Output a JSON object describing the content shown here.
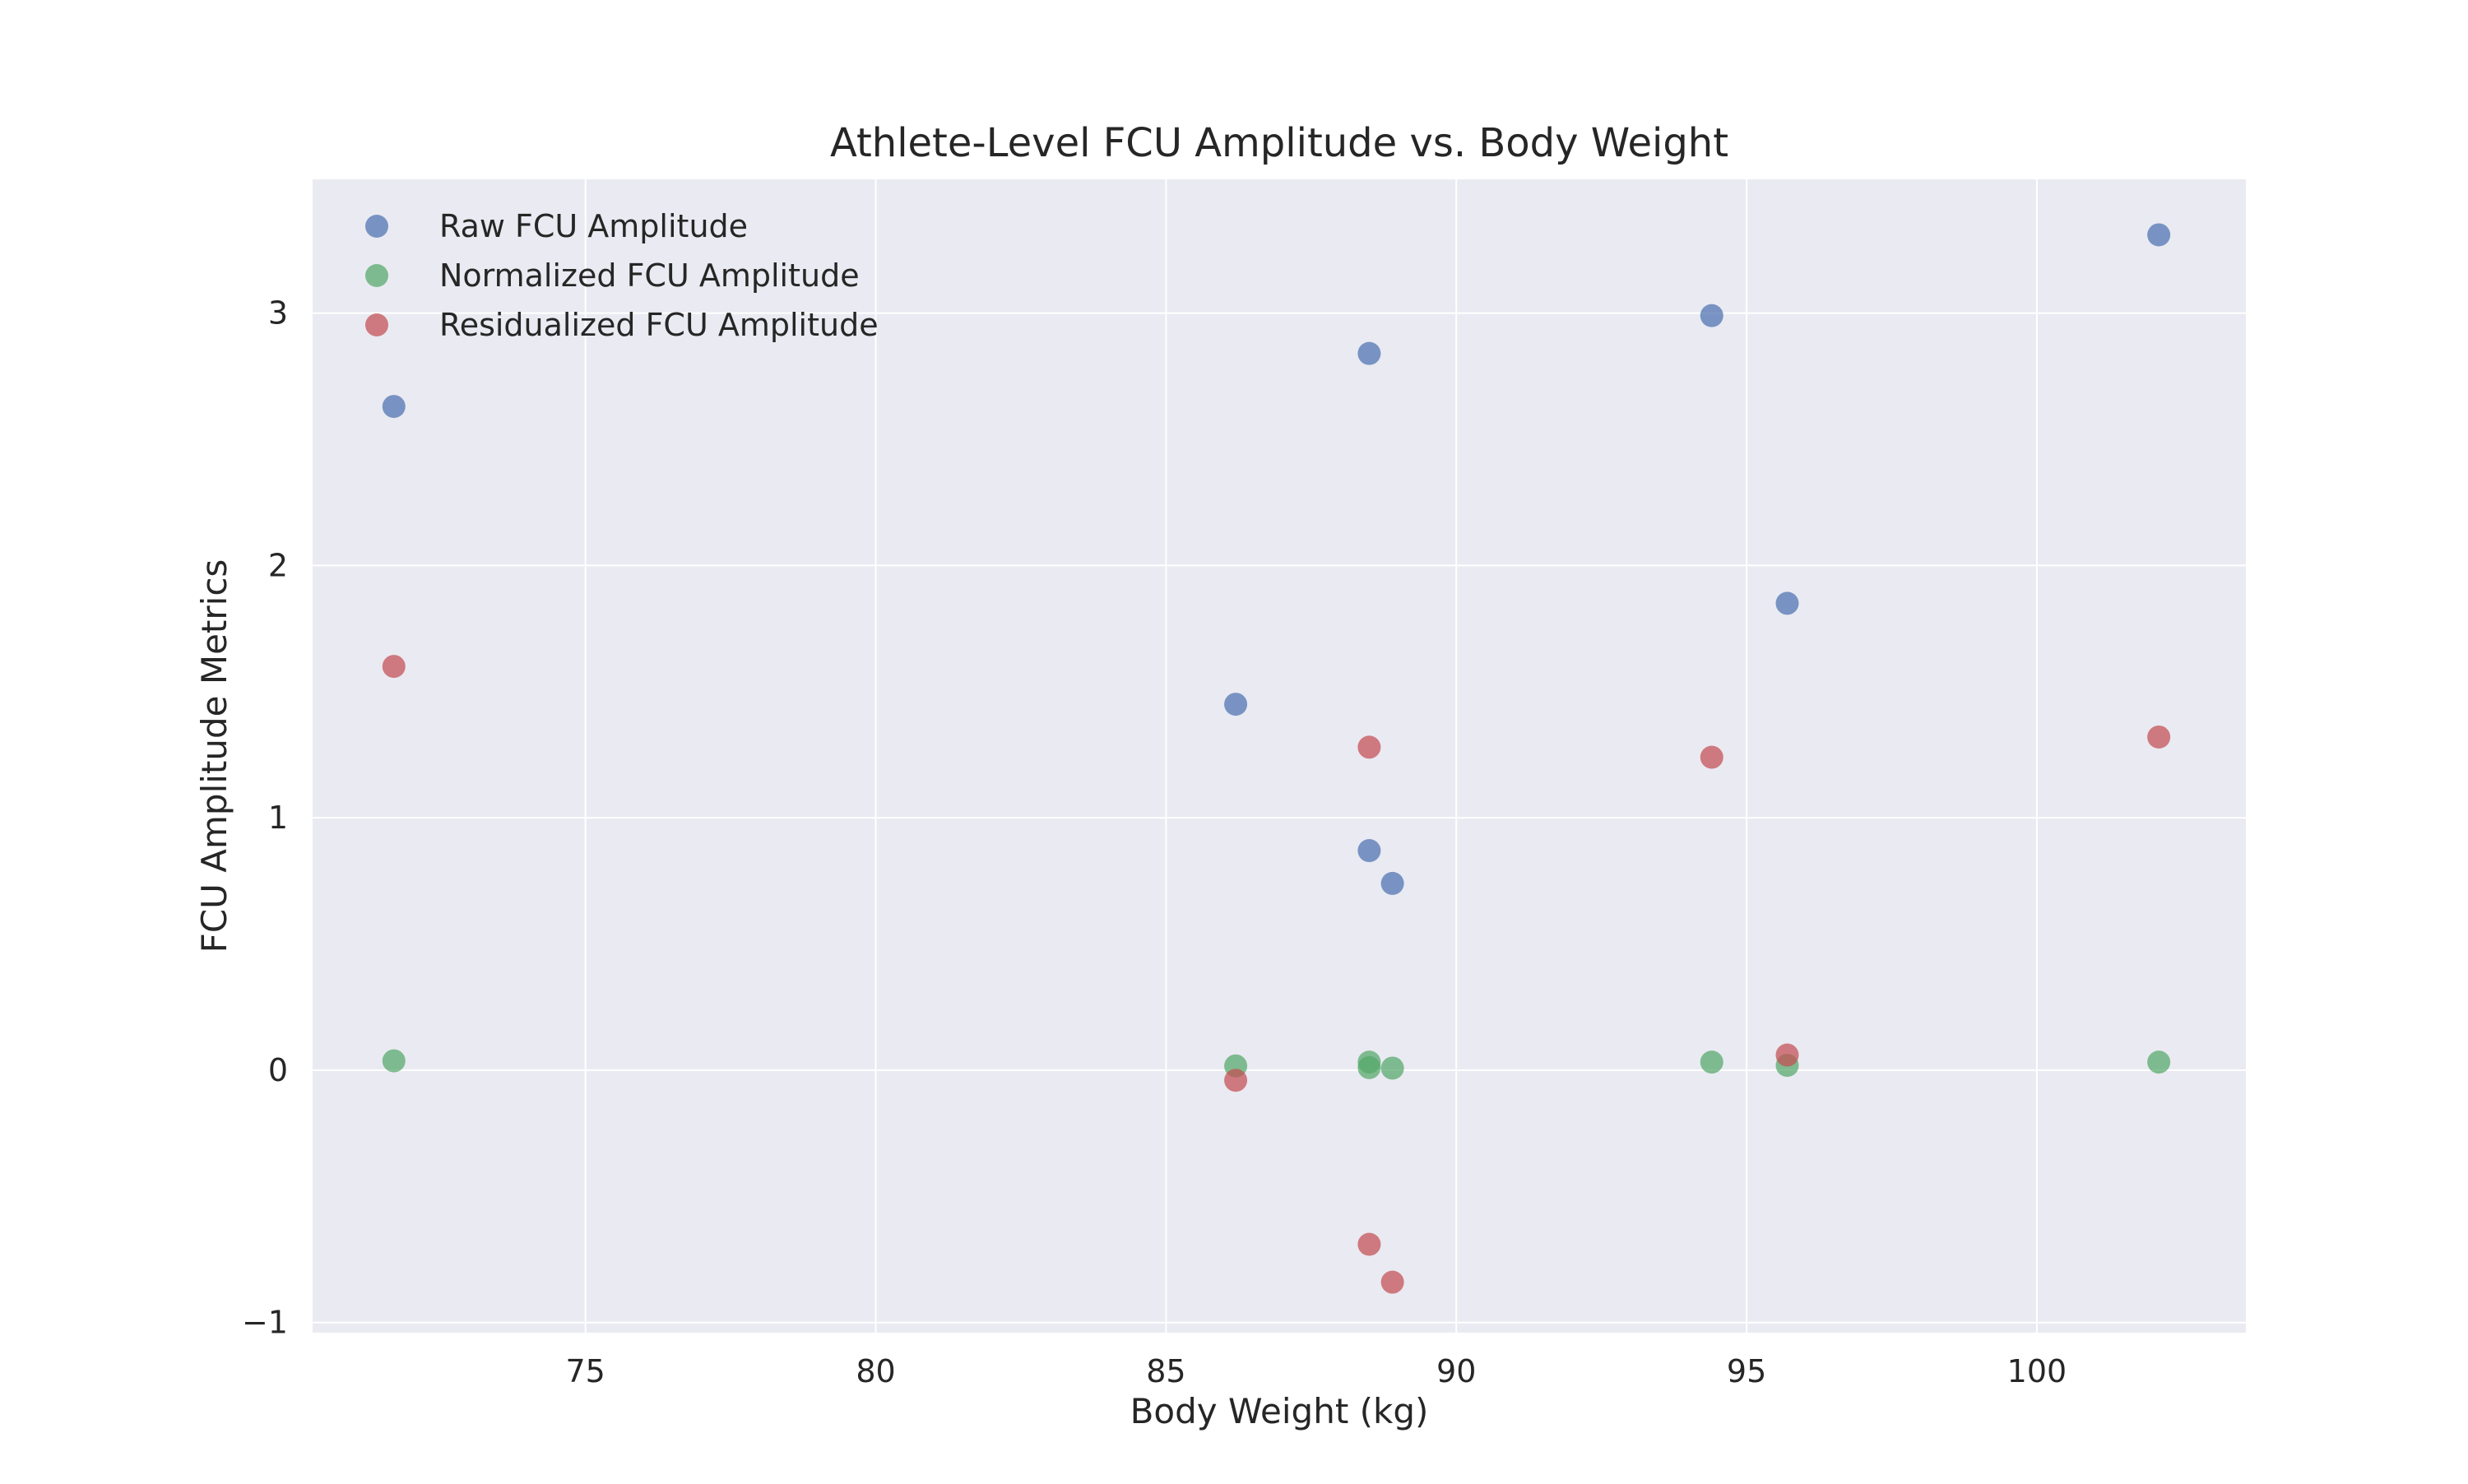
{
  "chart_data": {
    "type": "scatter",
    "title": "Athlete-Level FCU Amplitude vs. Body Weight",
    "xlabel": "Body Weight (kg)",
    "ylabel": "FCU Amplitude Metrics",
    "xlim": [
      70.3,
      103.6
    ],
    "ylim": [
      -1.04,
      3.53
    ],
    "xticks": [
      75,
      80,
      85,
      90,
      95,
      100
    ],
    "xtick_labels": [
      "75",
      "80",
      "85",
      "90",
      "95",
      "100"
    ],
    "yticks": [
      -1,
      0,
      1,
      2,
      3
    ],
    "ytick_labels": [
      "−1",
      "0",
      "1",
      "2",
      "3"
    ],
    "grid": true,
    "legend_position": "top-left",
    "colors": {
      "background": "#eaeaf2",
      "grid": "#ffffff",
      "Raw FCU Amplitude": "#4c72b0",
      "Normalized FCU Amplitude": "#55a868",
      "Residualized FCU Amplitude": "#c44e52"
    },
    "series": [
      {
        "name": "Raw FCU Amplitude",
        "x": [
          71.7,
          86.2,
          88.5,
          88.5,
          88.9,
          94.4,
          95.7,
          102.1
        ],
        "y": [
          2.63,
          1.45,
          2.84,
          0.87,
          0.74,
          2.99,
          1.85,
          3.31
        ]
      },
      {
        "name": "Normalized FCU Amplitude",
        "x": [
          71.7,
          86.2,
          88.5,
          88.5,
          88.9,
          94.4,
          95.7,
          102.1
        ],
        "y": [
          0.037,
          0.017,
          0.032,
          0.01,
          0.008,
          0.032,
          0.019,
          0.032
        ]
      },
      {
        "name": "Residualized FCU Amplitude",
        "x": [
          71.7,
          86.2,
          88.5,
          88.5,
          88.9,
          94.4,
          95.7,
          102.1
        ],
        "y": [
          1.6,
          -0.04,
          1.28,
          -0.69,
          -0.84,
          1.24,
          0.06,
          1.32
        ]
      }
    ]
  }
}
